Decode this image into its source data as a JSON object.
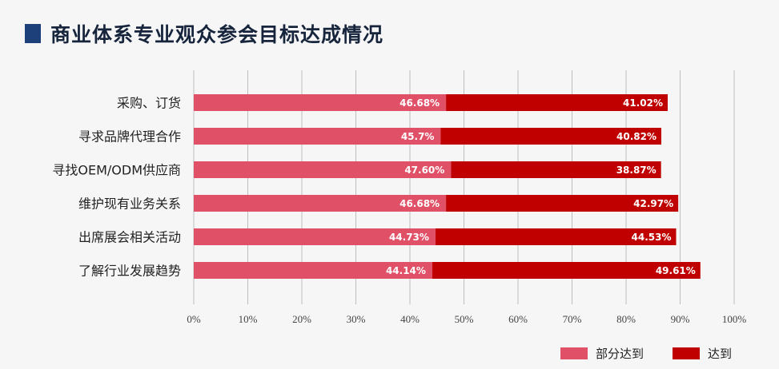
{
  "title": "商业体系专业观众参会目标达成情况",
  "chart_data": {
    "type": "bar",
    "orientation": "horizontal",
    "stacked": true,
    "categories": [
      "采购、订货",
      "寻求品牌代理合作",
      "寻找OEM/ODM供应商",
      "维护现有业务关系",
      "出席展会相关活动",
      "了解行业发展趋势"
    ],
    "series": [
      {
        "name": "部分达到",
        "color": "#e05168",
        "values": [
          46.68,
          45.7,
          47.6,
          46.68,
          44.73,
          44.14
        ],
        "labels": [
          "46.68%",
          "45.7%",
          "47.60%",
          "46.68%",
          "44.73%",
          "44.14%"
        ]
      },
      {
        "name": "达到",
        "color": "#c00000",
        "values": [
          41.02,
          40.82,
          38.87,
          42.97,
          44.53,
          49.61
        ],
        "labels": [
          "41.02%",
          "40.82%",
          "38.87%",
          "42.97%",
          "44.53%",
          "49.61%"
        ]
      }
    ],
    "xlim": [
      0,
      100
    ],
    "xticks": [
      "0%",
      "10%",
      "20%",
      "30%",
      "40%",
      "50%",
      "60%",
      "70%",
      "80%",
      "90%",
      "100%"
    ],
    "grid": true,
    "legend": "bottom-right"
  }
}
